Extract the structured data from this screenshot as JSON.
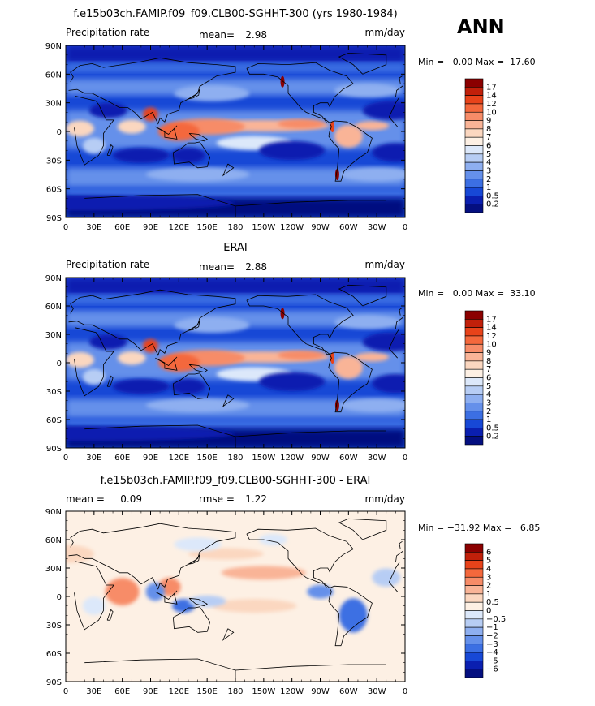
{
  "season": "ANN",
  "chart_data": [
    {
      "type": "heatmap",
      "title": "f.e15b03ch.FAMIP.f09_f09.CLB00-SGHHT-300 (yrs 1980-1984)",
      "left_label": "Precipitation rate",
      "stat_label": "mean=",
      "stat_value": "2.98",
      "units": "mm/day",
      "range_text": "Min =   0.00 Max =  17.60",
      "ylabels": [
        "90N",
        "60N",
        "30N",
        "0",
        "30S",
        "60S",
        "90S"
      ],
      "xlabels": [
        "0",
        "30E",
        "60E",
        "90E",
        "120E",
        "150E",
        "180",
        "150W",
        "120W",
        "90W",
        "60W",
        "30W",
        "0"
      ],
      "colorbar_labels": [
        "17",
        "14",
        "12",
        "10",
        "9",
        "8",
        "7",
        "6",
        "5",
        "4",
        "3",
        "2",
        "1",
        "0.5",
        "0.2"
      ],
      "colorbar_colors": [
        "#8b0000",
        "#c1200a",
        "#e8431a",
        "#f4683c",
        "#f78c68",
        "#f9b497",
        "#fbd7c0",
        "#fdf0e4",
        "#dce8fa",
        "#b7cdf4",
        "#8eaff0",
        "#6590ea",
        "#3c6fe3",
        "#1748d6",
        "#0a1fb0",
        "#040f80"
      ],
      "field_style": "precip"
    },
    {
      "type": "heatmap",
      "title": "ERAI",
      "left_label": "Precipitation rate",
      "stat_label": "mean=",
      "stat_value": "2.88",
      "units": "mm/day",
      "range_text": "Min =   0.00 Max =  33.10",
      "ylabels": [
        "90N",
        "60N",
        "30N",
        "0",
        "30S",
        "60S",
        "90S"
      ],
      "xlabels": [
        "0",
        "30E",
        "60E",
        "90E",
        "120E",
        "150E",
        "180",
        "150W",
        "120W",
        "90W",
        "60W",
        "30W",
        "0"
      ],
      "colorbar_labels": [
        "17",
        "14",
        "12",
        "10",
        "9",
        "8",
        "7",
        "6",
        "5",
        "4",
        "3",
        "2",
        "1",
        "0.5",
        "0.2"
      ],
      "colorbar_colors": [
        "#8b0000",
        "#c1200a",
        "#e8431a",
        "#f4683c",
        "#f78c68",
        "#f9b497",
        "#fbd7c0",
        "#fdf0e4",
        "#dce8fa",
        "#b7cdf4",
        "#8eaff0",
        "#6590ea",
        "#3c6fe3",
        "#1748d6",
        "#0a1fb0",
        "#040f80"
      ],
      "field_style": "precip"
    },
    {
      "type": "heatmap",
      "title": "f.e15b03ch.FAMIP.f09_f09.CLB00-SGHHT-300 - ERAI",
      "left_label": "mean =",
      "left_value": "0.09",
      "stat_label": "rmse =",
      "stat_value": "1.22",
      "units": "mm/day",
      "range_text": "Min = −31.92 Max =   6.85",
      "ylabels": [
        "90N",
        "60N",
        "30N",
        "0",
        "30S",
        "60S",
        "90S"
      ],
      "xlabels": [
        "0",
        "30E",
        "60E",
        "90E",
        "120E",
        "150E",
        "180",
        "150W",
        "120W",
        "90W",
        "60W",
        "30W",
        "0"
      ],
      "colorbar_labels": [
        "6",
        "5",
        "4",
        "3",
        "2",
        "1",
        "0.5",
        "0",
        "−0.5",
        "−1",
        "−2",
        "−3",
        "−4",
        "−5",
        "−6"
      ],
      "colorbar_colors": [
        "#8b0000",
        "#c1200a",
        "#e8431a",
        "#f4683c",
        "#f78c68",
        "#f9b497",
        "#fbd7c0",
        "#fdf0e4",
        "#dce8fa",
        "#b7cdf4",
        "#8eaff0",
        "#6590ea",
        "#3c6fe3",
        "#1748d6",
        "#0a1fb0",
        "#040f80"
      ],
      "field_style": "diff"
    }
  ]
}
